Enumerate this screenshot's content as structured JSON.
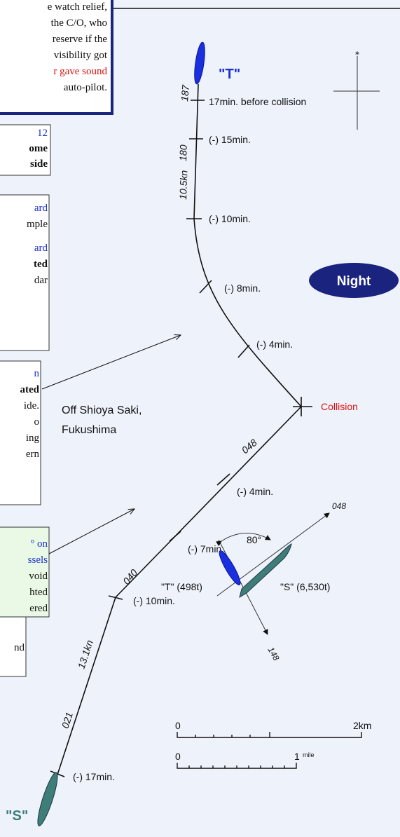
{
  "notes": [
    [
      "e watch relief,",
      "the C/O, who",
      "reserve if the",
      "visibility got",
      "r gave sound",
      "auto-pilot."
    ],
    [
      "12",
      "ome",
      "side"
    ],
    [
      "ard",
      "mple",
      "ard",
      "ted",
      "dar"
    ],
    [
      "n",
      "ated",
      "ide.",
      "o",
      "ing",
      "ern"
    ],
    [
      "° on",
      "ssels",
      "void",
      "hted",
      "ered"
    ],
    [
      "nd"
    ]
  ],
  "vessel_t": {
    "name": "\"T\"",
    "start": "17min. before collision",
    "course_1": "187",
    "course_2": "180",
    "speed": "10.5kn",
    "m15": "(-) 15min.",
    "m10": "(-) 10min.",
    "m8": "(-) 8min.",
    "m4": "(-) 4min."
  },
  "vessel_s": {
    "name": "\"S\"",
    "start": "(-) 17min.",
    "course_1": "021",
    "course_2": "040",
    "course_3": "048",
    "speed": "13.1kn",
    "m10": "(-) 10min.",
    "m7": "(-) 7min.",
    "m4": "(-) 4min."
  },
  "night": "Night",
  "collision": "Collision",
  "place": [
    "Off Shioya Saki,",
    "Fukushima"
  ],
  "encounter": {
    "angle": "80°",
    "t_label": "\"T\" (498t)",
    "s_label": "\"S\" (6,530t)",
    "s_course": "048",
    "t_course": "148"
  },
  "scale": {
    "km_zero": "0",
    "km": "2km",
    "mile_zero": "0",
    "mile_num": "1",
    "mile": "mile"
  }
}
